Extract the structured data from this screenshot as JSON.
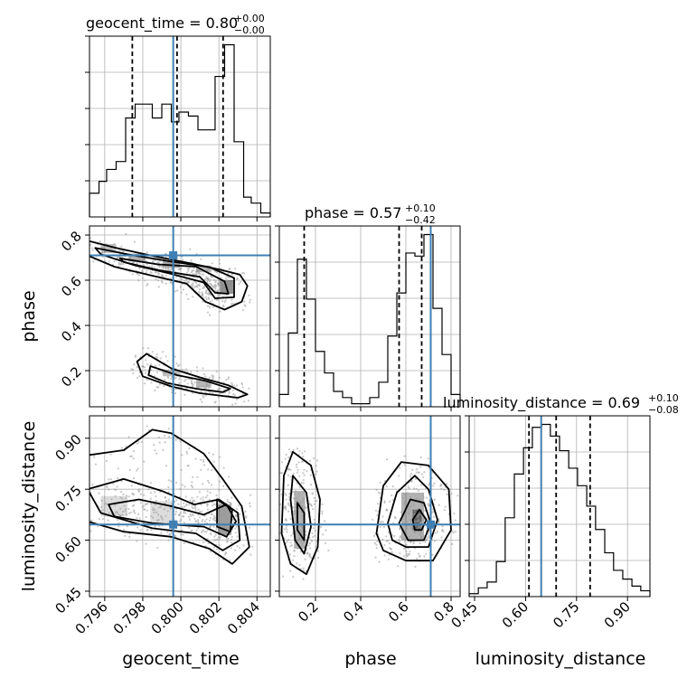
{
  "chart_data": {
    "type": "corner",
    "parameters": [
      "geocent_time",
      "phase",
      "luminosity_distance"
    ],
    "titles": [
      {
        "param": "geocent_time",
        "name": "geocent_time",
        "median": "0.80",
        "plus": "+0.00",
        "minus": "−0.00"
      },
      {
        "param": "phase",
        "name": "phase",
        "median": "0.57",
        "plus": "+0.10",
        "minus": "−0.42"
      },
      {
        "param": "luminosity_distance",
        "name": "luminosity_distance",
        "median": "0.69",
        "plus": "+0.10",
        "minus": "−0.08"
      }
    ],
    "ranges": {
      "geocent_time": [
        0.7952,
        0.8047
      ],
      "phase": [
        0.04,
        0.84
      ],
      "luminosity_distance": [
        0.434,
        0.966
      ]
    },
    "truths": {
      "geocent_time": 0.7996,
      "phase": 0.71,
      "luminosity_distance": 0.646
    },
    "quantiles": {
      "geocent_time": [
        0.79745,
        0.7998,
        0.80222
      ],
      "phase": [
        0.15,
        0.57,
        0.67
      ],
      "luminosity_distance": [
        0.61,
        0.69,
        0.79
      ]
    },
    "ticks": {
      "geocent_time": {
        "values": [
          0.796,
          0.798,
          0.8,
          0.802,
          0.804
        ],
        "labels": [
          "0.796",
          "0.798",
          "0.800",
          "0.802",
          "0.804"
        ]
      },
      "phase": {
        "values": [
          0.2,
          0.4,
          0.6,
          0.8
        ],
        "labels": [
          "0.2",
          "0.4",
          "0.6",
          "0.8"
        ]
      },
      "luminosity_distance": {
        "values": [
          0.45,
          0.6,
          0.75,
          0.9
        ],
        "labels": [
          "0.45",
          "0.60",
          "0.75",
          "0.90"
        ]
      }
    },
    "histograms": {
      "geocent_time": {
        "edges": [
          0.7952,
          0.7957,
          0.7961,
          0.7966,
          0.7971,
          0.7976,
          0.798,
          0.7985,
          0.799,
          0.7995,
          0.7999,
          0.8004,
          0.8009,
          0.8014,
          0.8018,
          0.8023,
          0.8028,
          0.8033,
          0.8037,
          0.8042,
          0.8047
        ],
        "counts": [
          0.6,
          0.9,
          1.2,
          1.4,
          2.5,
          2.85,
          2.85,
          2.5,
          2.85,
          2.4,
          2.65,
          2.55,
          2.2,
          2.2,
          3.55,
          4.35,
          1.9,
          0.5,
          0.35,
          0.1
        ]
      },
      "phase": {
        "edges": [
          0.04,
          0.08,
          0.12,
          0.16,
          0.2,
          0.24,
          0.28,
          0.32,
          0.36,
          0.4,
          0.44,
          0.48,
          0.52,
          0.56,
          0.6,
          0.64,
          0.68,
          0.72,
          0.76,
          0.8,
          0.84
        ],
        "counts": [
          0.2,
          1.2,
          2.4,
          1.75,
          0.9,
          0.55,
          0.25,
          0.15,
          0.05,
          0.05,
          0.15,
          0.4,
          1.15,
          1.85,
          2.5,
          2.45,
          2.8,
          1.6,
          0.85,
          0.2
        ]
      },
      "luminosity_distance": {
        "edges": [
          0.434,
          0.461,
          0.487,
          0.514,
          0.54,
          0.567,
          0.594,
          0.62,
          0.647,
          0.673,
          0.7,
          0.727,
          0.753,
          0.78,
          0.806,
          0.833,
          0.859,
          0.886,
          0.913,
          0.939,
          0.966
        ],
        "counts": [
          0.05,
          0.15,
          0.25,
          0.6,
          1.35,
          2.1,
          2.55,
          2.9,
          2.95,
          2.75,
          2.5,
          2.2,
          1.9,
          1.55,
          1.15,
          0.75,
          0.45,
          0.3,
          0.18,
          0.1
        ]
      }
    },
    "contours": {
      "phase_vs_geocent_time": [
        [
          [
            0.7951,
            0.775
          ],
          [
            0.7965,
            0.745
          ],
          [
            0.7985,
            0.708
          ],
          [
            0.8005,
            0.675
          ],
          [
            0.802,
            0.648
          ],
          [
            0.8031,
            0.625
          ],
          [
            0.8035,
            0.575
          ],
          [
            0.8032,
            0.505
          ],
          [
            0.8023,
            0.47
          ],
          [
            0.8013,
            0.505
          ],
          [
            0.8003,
            0.585
          ],
          [
            0.7985,
            0.62
          ],
          [
            0.7965,
            0.66
          ],
          [
            0.7951,
            0.71
          ]
        ],
        [
          [
            0.7955,
            0.743
          ],
          [
            0.7975,
            0.71
          ],
          [
            0.7995,
            0.683
          ],
          [
            0.8015,
            0.658
          ],
          [
            0.8028,
            0.61
          ],
          [
            0.8028,
            0.525
          ],
          [
            0.8018,
            0.52
          ],
          [
            0.8012,
            0.59
          ],
          [
            0.7995,
            0.628
          ],
          [
            0.7975,
            0.668
          ],
          [
            0.7958,
            0.715
          ]
        ],
        [
          [
            0.7968,
            0.697
          ],
          [
            0.7988,
            0.67
          ],
          [
            0.8008,
            0.66
          ],
          [
            0.8023,
            0.595
          ],
          [
            0.8025,
            0.54
          ],
          [
            0.8018,
            0.545
          ],
          [
            0.801,
            0.615
          ],
          [
            0.7988,
            0.645
          ],
          [
            0.797,
            0.68
          ]
        ],
        [
          [
            0.7982,
            0.275
          ],
          [
            0.7995,
            0.21
          ],
          [
            0.801,
            0.17
          ],
          [
            0.8025,
            0.135
          ],
          [
            0.8035,
            0.095
          ],
          [
            0.803,
            0.08
          ],
          [
            0.801,
            0.1
          ],
          [
            0.7995,
            0.13
          ],
          [
            0.798,
            0.175
          ],
          [
            0.7977,
            0.24
          ]
        ],
        [
          [
            0.7984,
            0.22
          ],
          [
            0.7998,
            0.18
          ],
          [
            0.8013,
            0.155
          ],
          [
            0.8026,
            0.12
          ],
          [
            0.8022,
            0.105
          ],
          [
            0.8008,
            0.12
          ],
          [
            0.7993,
            0.145
          ],
          [
            0.7983,
            0.18
          ]
        ]
      ],
      "luminosity_distance_vs_geocent_time": [
        [
          [
            0.7951,
            0.655
          ],
          [
            0.7951,
            0.85
          ],
          [
            0.797,
            0.865
          ],
          [
            0.7985,
            0.925
          ],
          [
            0.7995,
            0.915
          ],
          [
            0.8012,
            0.855
          ],
          [
            0.8022,
            0.78
          ],
          [
            0.8032,
            0.7
          ],
          [
            0.8036,
            0.58
          ],
          [
            0.8027,
            0.53
          ],
          [
            0.8015,
            0.575
          ],
          [
            0.7995,
            0.61
          ],
          [
            0.797,
            0.625
          ]
        ],
        [
          [
            0.7951,
            0.75
          ],
          [
            0.797,
            0.78
          ],
          [
            0.799,
            0.745
          ],
          [
            0.8007,
            0.705
          ],
          [
            0.802,
            0.72
          ],
          [
            0.803,
            0.68
          ],
          [
            0.8031,
            0.6
          ],
          [
            0.8022,
            0.57
          ],
          [
            0.8008,
            0.62
          ],
          [
            0.7985,
            0.635
          ],
          [
            0.7958,
            0.68
          ]
        ],
        [
          [
            0.7962,
            0.705
          ],
          [
            0.7978,
            0.72
          ],
          [
            0.7995,
            0.7
          ],
          [
            0.8012,
            0.675
          ],
          [
            0.8024,
            0.705
          ],
          [
            0.8029,
            0.655
          ],
          [
            0.8024,
            0.61
          ],
          [
            0.8012,
            0.64
          ],
          [
            0.7985,
            0.65
          ],
          [
            0.7965,
            0.67
          ]
        ],
        [
          [
            0.8019,
            0.72
          ],
          [
            0.8027,
            0.69
          ],
          [
            0.8026,
            0.625
          ],
          [
            0.8019,
            0.64
          ]
        ]
      ],
      "luminosity_distance_vs_phase": [
        [
          [
            0.06,
            0.79
          ],
          [
            0.1,
            0.86
          ],
          [
            0.18,
            0.82
          ],
          [
            0.22,
            0.72
          ],
          [
            0.21,
            0.58
          ],
          [
            0.16,
            0.5
          ],
          [
            0.09,
            0.53
          ],
          [
            0.05,
            0.62
          ]
        ],
        [
          [
            0.1,
            0.79
          ],
          [
            0.16,
            0.74
          ],
          [
            0.18,
            0.64
          ],
          [
            0.15,
            0.56
          ],
          [
            0.11,
            0.6
          ],
          [
            0.09,
            0.72
          ]
        ],
        [
          [
            0.12,
            0.71
          ],
          [
            0.15,
            0.68
          ],
          [
            0.15,
            0.6
          ],
          [
            0.12,
            0.63
          ]
        ],
        [
          [
            0.47,
            0.62
          ],
          [
            0.5,
            0.76
          ],
          [
            0.58,
            0.83
          ],
          [
            0.7,
            0.82
          ],
          [
            0.79,
            0.75
          ],
          [
            0.8,
            0.63
          ],
          [
            0.72,
            0.54
          ],
          [
            0.6,
            0.54
          ],
          [
            0.5,
            0.57
          ]
        ],
        [
          [
            0.52,
            0.65
          ],
          [
            0.56,
            0.74
          ],
          [
            0.64,
            0.79
          ],
          [
            0.7,
            0.75
          ],
          [
            0.74,
            0.66
          ],
          [
            0.7,
            0.58
          ],
          [
            0.6,
            0.58
          ],
          [
            0.54,
            0.6
          ]
        ],
        [
          [
            0.57,
            0.65
          ],
          [
            0.62,
            0.72
          ],
          [
            0.68,
            0.71
          ],
          [
            0.71,
            0.65
          ],
          [
            0.68,
            0.6
          ],
          [
            0.61,
            0.6
          ]
        ],
        [
          [
            0.63,
            0.66
          ],
          [
            0.66,
            0.69
          ],
          [
            0.69,
            0.66
          ],
          [
            0.67,
            0.63
          ],
          [
            0.64,
            0.63
          ]
        ]
      ]
    },
    "shading": {
      "phase_vs_geocent_time": [
        [
          0.7962,
          0.74,
          0.0008,
          0.04,
          0.45
        ],
        [
          0.7977,
          0.7,
          0.0009,
          0.035,
          0.55
        ],
        [
          0.7995,
          0.67,
          0.0009,
          0.03,
          0.65
        ],
        [
          0.8012,
          0.65,
          0.0008,
          0.03,
          0.5
        ],
        [
          0.8024,
          0.57,
          0.0007,
          0.06,
          0.8
        ],
        [
          0.7995,
          0.19,
          0.0009,
          0.03,
          0.45
        ],
        [
          0.8012,
          0.14,
          0.0008,
          0.03,
          0.5
        ]
      ],
      "luminosity_distance_vs_geocent_time": [
        [
          0.7965,
          0.7,
          0.0014,
          0.06,
          0.25
        ],
        [
          0.799,
          0.68,
          0.0012,
          0.07,
          0.25
        ],
        [
          0.8023,
          0.66,
          0.0007,
          0.09,
          0.7
        ]
      ],
      "luminosity_distance_vs_phase": [
        [
          0.13,
          0.66,
          0.05,
          0.17,
          0.55
        ],
        [
          0.63,
          0.67,
          0.1,
          0.14,
          0.55
        ],
        [
          0.65,
          0.66,
          0.04,
          0.06,
          0.85
        ]
      ]
    }
  }
}
